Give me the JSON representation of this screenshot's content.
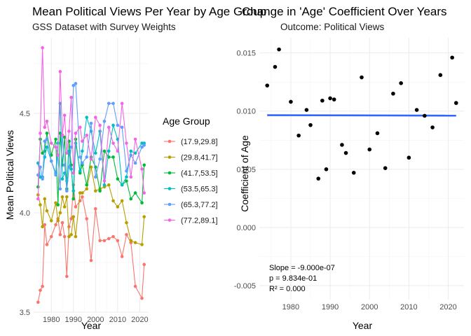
{
  "chart_data": [
    {
      "type": "line",
      "title": "Mean Political Views Per Year by Age Group",
      "subtitle": "GSS Dataset with Survey Weights",
      "xlabel": "Year",
      "ylabel": "Mean Political Views",
      "xlim": [
        1972,
        2024
      ],
      "ylim": [
        3.5,
        4.88
      ],
      "xticks": [
        1980,
        1990,
        2000,
        2010,
        2020
      ],
      "yticks": [
        3.5,
        4.0,
        4.5
      ],
      "ytick_labels": [
        "3.5",
        "4.0",
        "4.5"
      ],
      "grid": true,
      "legend_title": "Age Group",
      "legend_position": "right",
      "x": [
        1974,
        1975,
        1976,
        1977,
        1978,
        1980,
        1982,
        1983,
        1984,
        1985,
        1986,
        1987,
        1988,
        1989,
        1990,
        1991,
        1993,
        1994,
        1996,
        1998,
        2000,
        2002,
        2004,
        2006,
        2008,
        2010,
        2012,
        2014,
        2016,
        2018,
        2021,
        2022
      ],
      "series": [
        {
          "name": "(17.9,29.8]",
          "color": "#F8766D",
          "values": [
            3.55,
            3.61,
            3.63,
            3.94,
            3.84,
            3.88,
            3.94,
            3.97,
            3.89,
            3.95,
            3.88,
            3.68,
            3.93,
            3.97,
            4.14,
            4.03,
            4.06,
            4.08,
            3.97,
            3.76,
            4.02,
            3.86,
            3.86,
            3.87,
            3.88,
            3.86,
            3.78,
            3.89,
            3.85,
            3.63,
            3.57,
            3.74
          ]
        },
        {
          "name": "(29.8,41.7]",
          "color": "#B79F00",
          "values": [
            4.09,
            4.04,
            3.93,
            4.07,
            4.01,
            3.96,
            4.05,
            3.96,
            4.0,
            4.08,
            4.03,
            4.08,
            3.88,
            3.89,
            3.98,
            3.88,
            4.1,
            4.1,
            4.12,
            4.23,
            4.11,
            4.12,
            4.13,
            4.14,
            4.06,
            4.03,
            4.06,
            3.95,
            3.86,
            3.85,
            3.84,
            3.98
          ]
        },
        {
          "name": "(41.7,53.5]",
          "color": "#00BA38",
          "values": [
            4.13,
            4.37,
            4.3,
            4.31,
            4.4,
            4.29,
            4.37,
            4.04,
            4.4,
            4.24,
            4.38,
            4.12,
            4.36,
            4.24,
            4.07,
            4.37,
            4.2,
            4.24,
            4.14,
            4.28,
            4.23,
            4.11,
            4.31,
            4.28,
            4.28,
            4.17,
            4.14,
            4.16,
            4.07,
            4.1,
            4.05,
            4.24
          ]
        },
        {
          "name": "(53.5,65.3]",
          "color": "#00BFC4",
          "values": [
            4.25,
            4.18,
            4.18,
            4.28,
            4.33,
            4.26,
            4.2,
            4.35,
            4.55,
            4.17,
            4.2,
            4.16,
            4.31,
            4.22,
            4.11,
            4.35,
            4.21,
            4.31,
            4.48,
            4.41,
            4.3,
            4.41,
            4.14,
            4.31,
            4.44,
            4.37,
            4.14,
            4.18,
            4.31,
            4.3,
            4.35,
            4.35
          ]
        },
        {
          "name": "(65.3,77.2]",
          "color": "#619CFF",
          "values": [
            4.19,
            4.23,
            4.17,
            4.36,
            4.37,
            4.26,
            4.19,
            4.29,
            4.12,
            4.39,
            4.24,
            4.11,
            4.23,
            4.33,
            4.64,
            4.65,
            4.28,
            4.25,
            4.28,
            4.45,
            4.18,
            4.27,
            4.46,
            4.55,
            4.55,
            4.44,
            4.43,
            4.21,
            4.29,
            4.25,
            4.33,
            4.34
          ]
        },
        {
          "name": "(77.2,89.1]",
          "color": "#F564E3",
          "values": [
            4.07,
            4.4,
            4.83,
            4.43,
            4.46,
            4.35,
            4.33,
            4.29,
            4.71,
            4.39,
            4.49,
            4.3,
            4.41,
            4.58,
            4.2,
            4.4,
            4.43,
            4.36,
            4.39,
            4.27,
            4.48,
            4.44,
            4.16,
            4.43,
            4.35,
            4.31,
            4.55,
            4.35,
            4.18,
            4.37,
            4.22,
            4.1
          ]
        }
      ]
    },
    {
      "type": "scatter",
      "title": "Change in 'Age' Coefficient Over Years",
      "subtitle": "Outcome: Political Views",
      "xlabel": "Year",
      "ylabel": "Coefficient of Age",
      "xlim": [
        1972,
        2024
      ],
      "ylim": [
        -0.0062,
        0.0163
      ],
      "xticks": [
        1980,
        1990,
        2000,
        2010,
        2020
      ],
      "yticks": [
        -0.005,
        0.0,
        0.005,
        0.01,
        0.015
      ],
      "ytick_labels": [
        "-0.005",
        "0.000",
        "0.005",
        "0.010",
        "0.015"
      ],
      "grid": true,
      "points": [
        {
          "x": 1974,
          "y": 0.0122
        },
        {
          "x": 1976,
          "y": 0.0138
        },
        {
          "x": 1977,
          "y": 0.0153
        },
        {
          "x": 1980,
          "y": 0.0108
        },
        {
          "x": 1982,
          "y": 0.0079
        },
        {
          "x": 1984,
          "y": 0.0101
        },
        {
          "x": 1985,
          "y": 0.0088
        },
        {
          "x": 1987,
          "y": 0.0042
        },
        {
          "x": 1988,
          "y": 0.0109
        },
        {
          "x": 1989,
          "y": 0.005
        },
        {
          "x": 1990,
          "y": 0.0111
        },
        {
          "x": 1991,
          "y": 0.011
        },
        {
          "x": 1993,
          "y": 0.0071
        },
        {
          "x": 1994,
          "y": 0.0064
        },
        {
          "x": 1996,
          "y": 0.0047
        },
        {
          "x": 1998,
          "y": 0.0129
        },
        {
          "x": 2000,
          "y": 0.0067
        },
        {
          "x": 2002,
          "y": 0.0081
        },
        {
          "x": 2004,
          "y": 0.0051
        },
        {
          "x": 2006,
          "y": 0.0115
        },
        {
          "x": 2008,
          "y": 0.0124
        },
        {
          "x": 2010,
          "y": 0.006
        },
        {
          "x": 2012,
          "y": 0.0101
        },
        {
          "x": 2014,
          "y": 0.0096
        },
        {
          "x": 2016,
          "y": 0.0086
        },
        {
          "x": 2018,
          "y": 0.0131
        },
        {
          "x": 2021,
          "y": 0.0146
        },
        {
          "x": 2022,
          "y": 0.0107
        }
      ],
      "trend_line": {
        "x": [
          1974,
          2022
        ],
        "y": [
          0.00965,
          0.00961
        ],
        "color": "#3366FF"
      },
      "annotations": [
        "Slope = -9.000e-07",
        "p = 9.834e-01",
        "R² = 0.000"
      ]
    }
  ]
}
